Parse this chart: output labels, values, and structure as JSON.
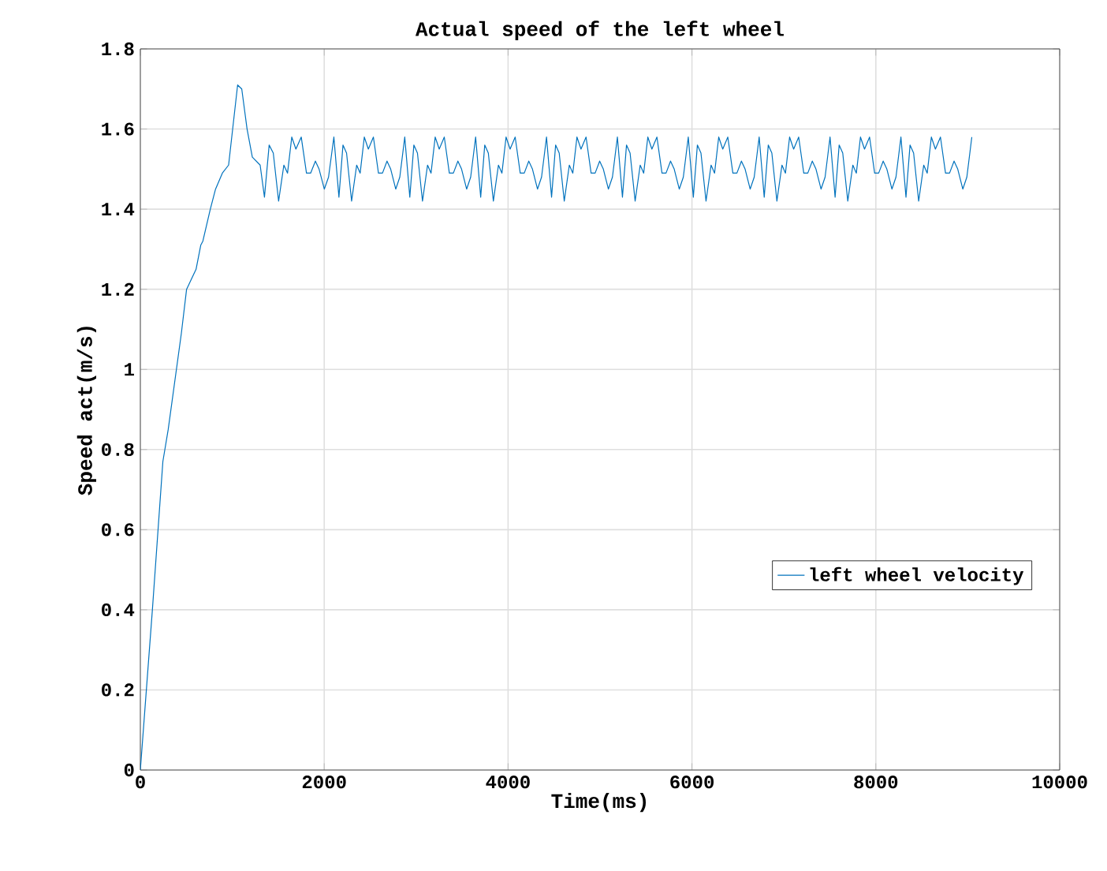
{
  "chart_data": {
    "type": "line",
    "title": "Actual speed of the left wheel",
    "xlabel": "Time(ms)",
    "ylabel": "Speed act(m/s)",
    "xlim": [
      0,
      10000
    ],
    "ylim": [
      0,
      1.8
    ],
    "xticks": [
      0,
      2000,
      4000,
      6000,
      8000,
      10000
    ],
    "yticks": [
      0,
      0.2,
      0.4,
      0.6,
      0.8,
      1,
      1.2,
      1.4,
      1.6,
      1.8
    ],
    "grid": true,
    "legend": "right",
    "series": [
      {
        "name": "left wheel velocity",
        "color": "#0072bd",
        "x": [
          0,
          131,
          245,
          303,
          446,
          503,
          606,
          657,
          680,
          761,
          818,
          892,
          960,
          1058,
          1103,
          1161,
          1218,
          1303,
          1350,
          1401,
          1446,
          1504,
          1561,
          1601,
          1647,
          1692,
          1750,
          1807,
          1852,
          1904,
          1944,
          2001,
          2047,
          2105,
          2160,
          2204,
          2243,
          2298,
          2353,
          2391,
          2436,
          2480,
          2535,
          2590,
          2634,
          2683,
          2723,
          2778,
          2822,
          2876,
          2931,
          2975,
          3014,
          3069,
          3124,
          3162,
          3207,
          3251,
          3306,
          3361,
          3405,
          3454,
          3494,
          3549,
          3593,
          3647,
          3702,
          3746,
          3785,
          3840,
          3895,
          3933,
          3978,
          4022,
          4077,
          4132,
          4176,
          4225,
          4265,
          4320,
          4364,
          4418,
          4473,
          4517,
          4556,
          4611,
          4666,
          4704,
          4749,
          4793,
          4848,
          4903,
          4947,
          4996,
          5036,
          5091,
          5135,
          5189,
          5244,
          5288,
          5327,
          5382,
          5437,
          5475,
          5520,
          5564,
          5619,
          5674,
          5718,
          5767,
          5807,
          5862,
          5906,
          5960,
          6015,
          6059,
          6098,
          6153,
          6208,
          6246,
          6291,
          6335,
          6390,
          6445,
          6489,
          6538,
          6578,
          6633,
          6677,
          6731,
          6786,
          6830,
          6869,
          6924,
          6979,
          7017,
          7062,
          7106,
          7161,
          7216,
          7260,
          7309,
          7349,
          7404,
          7448,
          7502,
          7557,
          7601,
          7640,
          7695,
          7750,
          7788,
          7833,
          7877,
          7932,
          7987,
          8031,
          8080,
          8120,
          8175,
          8219,
          8273,
          8328,
          8372,
          8411,
          8466,
          8521,
          8559,
          8604,
          8648,
          8703,
          8758,
          8802,
          8851,
          8891,
          8946,
          8990,
          9044
        ],
        "values": [
          0,
          0.4,
          0.77,
          0.85,
          1.09,
          1.2,
          1.25,
          1.31,
          1.32,
          1.4,
          1.45,
          1.49,
          1.51,
          1.71,
          1.7,
          1.6,
          1.53,
          1.51,
          1.43,
          1.56,
          1.54,
          1.42,
          1.51,
          1.49,
          1.58,
          1.55,
          1.58,
          1.49,
          1.49,
          1.52,
          1.5,
          1.45,
          1.48,
          1.58,
          1.43,
          1.56,
          1.54,
          1.42,
          1.51,
          1.49,
          1.58,
          1.55,
          1.58,
          1.49,
          1.49,
          1.52,
          1.5,
          1.45,
          1.48,
          1.58,
          1.43,
          1.56,
          1.54,
          1.42,
          1.51,
          1.49,
          1.58,
          1.55,
          1.58,
          1.49,
          1.49,
          1.52,
          1.5,
          1.45,
          1.48,
          1.58,
          1.43,
          1.56,
          1.54,
          1.42,
          1.51,
          1.49,
          1.58,
          1.55,
          1.58,
          1.49,
          1.49,
          1.52,
          1.5,
          1.45,
          1.48,
          1.58,
          1.43,
          1.56,
          1.54,
          1.42,
          1.51,
          1.49,
          1.58,
          1.55,
          1.58,
          1.49,
          1.49,
          1.52,
          1.5,
          1.45,
          1.48,
          1.58,
          1.43,
          1.56,
          1.54,
          1.42,
          1.51,
          1.49,
          1.58,
          1.55,
          1.58,
          1.49,
          1.49,
          1.52,
          1.5,
          1.45,
          1.48,
          1.58,
          1.43,
          1.56,
          1.54,
          1.42,
          1.51,
          1.49,
          1.58,
          1.55,
          1.58,
          1.49,
          1.49,
          1.52,
          1.5,
          1.45,
          1.48,
          1.58,
          1.43,
          1.56,
          1.54,
          1.42,
          1.51,
          1.49,
          1.58,
          1.55,
          1.58,
          1.49,
          1.49,
          1.52,
          1.5,
          1.45,
          1.48,
          1.58,
          1.43,
          1.56,
          1.54,
          1.42,
          1.51,
          1.49,
          1.58,
          1.55,
          1.58,
          1.49,
          1.49,
          1.52,
          1.5,
          1.45,
          1.48,
          1.58,
          1.43,
          1.56,
          1.54,
          1.42,
          1.51,
          1.49,
          1.58,
          1.55,
          1.58,
          1.49,
          1.49,
          1.52,
          1.5,
          1.45,
          1.48,
          1.58
        ]
      }
    ]
  }
}
